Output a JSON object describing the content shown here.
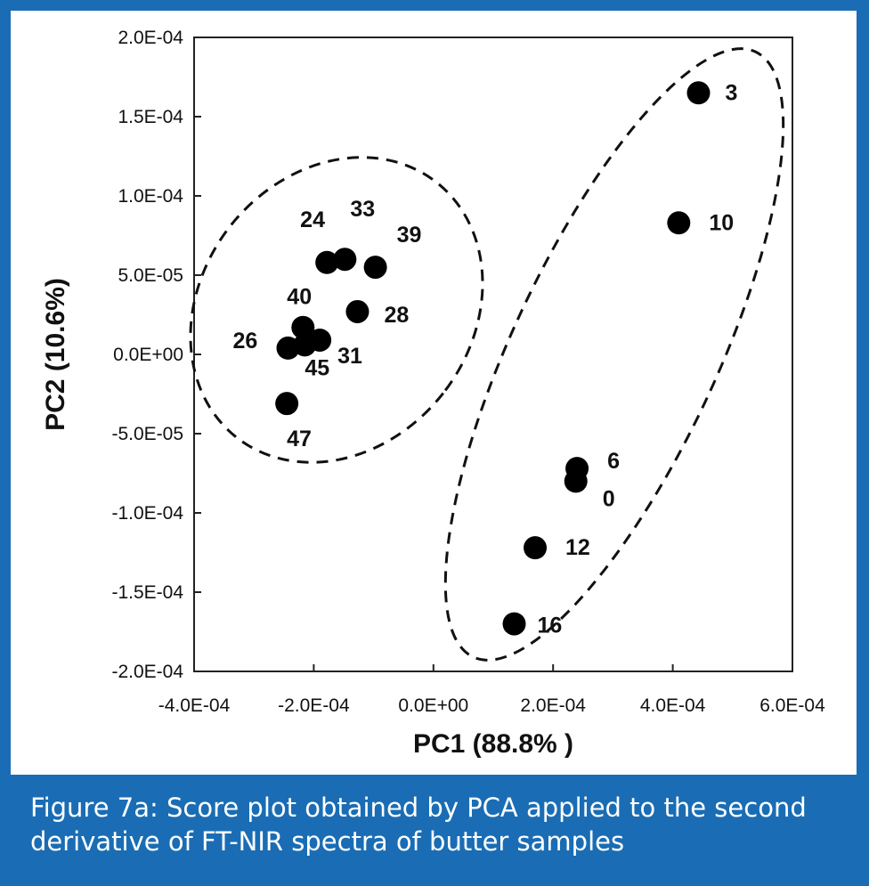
{
  "chart_data": {
    "type": "scatter",
    "xlabel": "PC1 (88.8% )",
    "ylabel": "PC2 (10.6%)",
    "xlim": [
      -0.0004,
      0.0006
    ],
    "ylim": [
      -0.0002,
      0.0002
    ],
    "xticks": [
      "-4.0E-04",
      "-2.0E-04",
      "0.0E+00",
      "2.0E-04",
      "4.0E-04",
      "6.0E-04"
    ],
    "xtick_values": [
      -0.0004,
      -0.0002,
      0,
      0.0002,
      0.0004,
      0.0006
    ],
    "yticks": [
      "2.0E-04",
      "1.5E-04",
      "1.0E-04",
      "5.0E-05",
      "0.0E+00",
      "-5.0E-05",
      "-1.0E-04",
      "-1.5E-04",
      "-2.0E-04"
    ],
    "ytick_values": [
      0.0002,
      0.00015,
      0.0001,
      5e-05,
      0,
      -5e-05,
      -0.0001,
      -0.00015,
      -0.0002
    ],
    "points": [
      {
        "label": "3",
        "x": 0.000443,
        "y": 0.000165
      },
      {
        "label": "10",
        "x": 0.00041,
        "y": 8.3e-05
      },
      {
        "label": "6",
        "x": 0.00024,
        "y": -7.2e-05
      },
      {
        "label": "0",
        "x": 0.000238,
        "y": -8e-05
      },
      {
        "label": "12",
        "x": 0.00017,
        "y": -0.000122
      },
      {
        "label": "16",
        "x": 0.000135,
        "y": -0.00017
      },
      {
        "label": "24",
        "x": -0.000178,
        "y": 5.8e-05
      },
      {
        "label": "33",
        "x": -0.000148,
        "y": 6e-05
      },
      {
        "label": "39",
        "x": -9.7e-05,
        "y": 5.5e-05
      },
      {
        "label": "28",
        "x": -0.000127,
        "y": 2.7e-05
      },
      {
        "label": "40",
        "x": -0.000218,
        "y": 1.7e-05
      },
      {
        "label": "31",
        "x": -0.00019,
        "y": 9e-06
      },
      {
        "label": "45",
        "x": -0.000215,
        "y": 6e-06
      },
      {
        "label": "26",
        "x": -0.000243,
        "y": 4e-06
      },
      {
        "label": "47",
        "x": -0.000245,
        "y": -3.1e-05
      }
    ],
    "groups": [
      {
        "name": "group-left",
        "members": [
          "24",
          "33",
          "39",
          "28",
          "40",
          "31",
          "45",
          "26",
          "47"
        ]
      },
      {
        "name": "group-right",
        "members": [
          "3",
          "10",
          "6",
          "0",
          "12",
          "16"
        ]
      }
    ]
  },
  "caption": {
    "line1": "Figure 7a: Score plot obtained by PCA applied to the second",
    "line2": "derivative of FT-NIR spectra of butter samples"
  },
  "colors": {
    "frame": "#1a6db4",
    "panel": "#ffffff",
    "marker": "#000000"
  }
}
